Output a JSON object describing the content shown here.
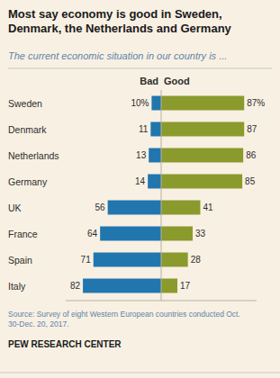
{
  "chart_data": {
    "type": "bar",
    "orientation": "horizontal",
    "title": "Most say economy is good in Sweden,\nDenmark, the Netherlands and Germany",
    "subtitle": "The current economic situation in our country is ...",
    "annotations": [
      "Source: Survey of eight Western European countries conducted Oct.\n30-Dec. 20, 2017.",
      "PEW RESEARCH CENTER"
    ],
    "categories": [
      "Sweden",
      "Denmark",
      "Netherlands",
      "Germany",
      "UK",
      "France",
      "Spain",
      "Italy"
    ],
    "series": [
      {
        "name": "Bad",
        "color": "#2176ae",
        "values": [
          10,
          11,
          13,
          14,
          56,
          64,
          71,
          82
        ],
        "value_labels": [
          "10%",
          "11",
          "13",
          "14",
          "56",
          "64",
          "71",
          "82"
        ]
      },
      {
        "name": "Good",
        "color": "#8a9a2c",
        "values": [
          87,
          87,
          86,
          85,
          41,
          33,
          28,
          17
        ],
        "value_labels": [
          "87%",
          "87",
          "86",
          "85",
          "41",
          "33",
          "28",
          "17"
        ]
      }
    ],
    "xlim": [
      0,
      100
    ],
    "data_labels": true,
    "tick_labels": false,
    "grid": false
  }
}
